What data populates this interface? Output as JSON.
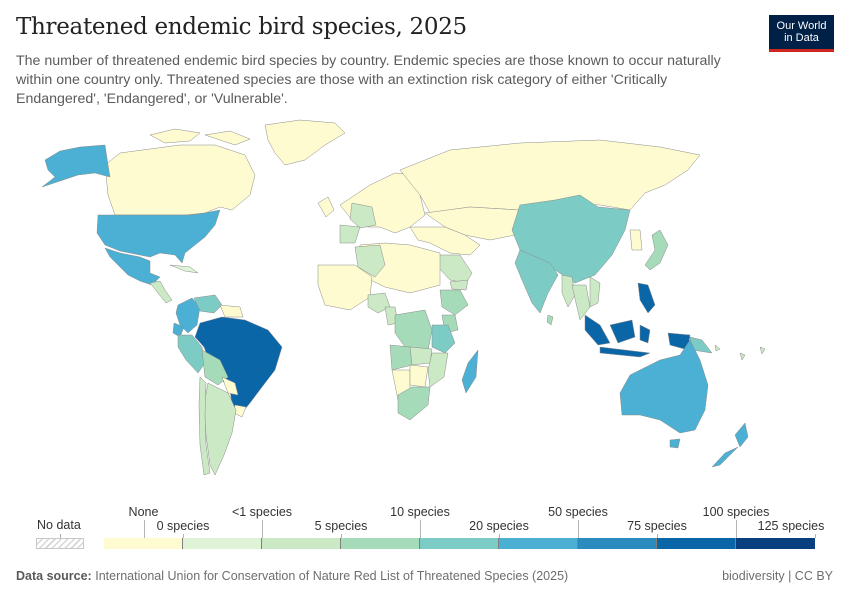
{
  "header": {
    "title": "Threatened endemic bird species, 2025",
    "subtitle": "The number of threatened endemic bird species by country. Endemic species are those known to occur naturally within one country only. Threatened species are those with an extinction risk category of either 'Critically Endangered', 'Endangered', or 'Vulnerable'.",
    "logo_line1": "Our World",
    "logo_line2": "in Data"
  },
  "legend": {
    "no_data_label": "No data",
    "bins": [
      {
        "label": "None",
        "color": "#fdfbcf"
      },
      {
        "label": "0 species",
        "color": "#dff3d6"
      },
      {
        "label": "<1 species",
        "color": "#cbe9c4"
      },
      {
        "label": "5 species",
        "color": "#a5dbb9"
      },
      {
        "label": "10 species",
        "color": "#7ccbc4"
      },
      {
        "label": "20 species",
        "color": "#4bb0d3"
      },
      {
        "label": "50 species",
        "color": "#2a8bbf"
      },
      {
        "label": "75 species",
        "color": "#0b66a8"
      },
      {
        "label": "100 species",
        "color": "#083f7e"
      }
    ],
    "tick_labels": [
      "None",
      "0 species",
      "<1 species",
      "5 species",
      "10 species",
      "20 species",
      "50 species",
      "75 species",
      "100 species",
      "125 species"
    ]
  },
  "footer": {
    "source_label": "Data source:",
    "source_text": "International Union for Conservation of Nature Red List of Threatened Species (2025)",
    "right_text": "biodiversity | CC BY"
  },
  "chart_data": {
    "type": "choropleth-map",
    "title": "Threatened endemic bird species, 2025",
    "unit": "species",
    "scale_breaks": [
      0,
      1,
      5,
      10,
      20,
      50,
      75,
      100,
      125
    ],
    "regions": [
      {
        "name": "Canada",
        "bin": 0
      },
      {
        "name": "Greenland",
        "bin": 0
      },
      {
        "name": "United States",
        "bin": 5
      },
      {
        "name": "Alaska",
        "bin": 5
      },
      {
        "name": "Mexico",
        "bin": 5
      },
      {
        "name": "Central America",
        "bin": 2
      },
      {
        "name": "Cuba",
        "bin": 1
      },
      {
        "name": "Colombia",
        "bin": 5
      },
      {
        "name": "Venezuela",
        "bin": 4
      },
      {
        "name": "Guianas",
        "bin": 0
      },
      {
        "name": "Ecuador",
        "bin": 5
      },
      {
        "name": "Peru",
        "bin": 4
      },
      {
        "name": "Brazil",
        "bin": 7
      },
      {
        "name": "Bolivia",
        "bin": 3
      },
      {
        "name": "Paraguay",
        "bin": 0
      },
      {
        "name": "Uruguay",
        "bin": 0
      },
      {
        "name": "Argentina",
        "bin": 2
      },
      {
        "name": "Chile",
        "bin": 2
      },
      {
        "name": "Europe",
        "bin": 0
      },
      {
        "name": "France",
        "bin": 2
      },
      {
        "name": "Iberia",
        "bin": 2
      },
      {
        "name": "Russia",
        "bin": 0
      },
      {
        "name": "Central Asia",
        "bin": 0
      },
      {
        "name": "Middle East",
        "bin": 0
      },
      {
        "name": "Saudi Arabia",
        "bin": 2
      },
      {
        "name": "Yemen",
        "bin": 2
      },
      {
        "name": "North Africa",
        "bin": 0
      },
      {
        "name": "Algeria",
        "bin": 2
      },
      {
        "name": "West Africa",
        "bin": 0
      },
      {
        "name": "Nigeria",
        "bin": 2
      },
      {
        "name": "Cameroon",
        "bin": 2
      },
      {
        "name": "Ethiopia",
        "bin": 3
      },
      {
        "name": "Kenya",
        "bin": 3
      },
      {
        "name": "DR Congo",
        "bin": 3
      },
      {
        "name": "Angola",
        "bin": 3
      },
      {
        "name": "Tanzania",
        "bin": 4
      },
      {
        "name": "Zambia",
        "bin": 2
      },
      {
        "name": "Mozambique",
        "bin": 2
      },
      {
        "name": "Namibia",
        "bin": 0
      },
      {
        "name": "Botswana",
        "bin": 0
      },
      {
        "name": "South Africa",
        "bin": 3
      },
      {
        "name": "Madagascar",
        "bin": 5
      },
      {
        "name": "China",
        "bin": 4
      },
      {
        "name": "India",
        "bin": 4
      },
      {
        "name": "Sri Lanka",
        "bin": 3
      },
      {
        "name": "Myanmar",
        "bin": 2
      },
      {
        "name": "Thailand",
        "bin": 2
      },
      {
        "name": "Vietnam",
        "bin": 2
      },
      {
        "name": "Japan",
        "bin": 3
      },
      {
        "name": "Korea",
        "bin": 0
      },
      {
        "name": "Philippines",
        "bin": 7
      },
      {
        "name": "Indonesia",
        "bin": 7
      },
      {
        "name": "Papua New Guinea",
        "bin": 4
      },
      {
        "name": "Australia",
        "bin": 5
      },
      {
        "name": "New Zealand",
        "bin": 5
      },
      {
        "name": "Pacific Islands",
        "bin": 2
      }
    ]
  }
}
